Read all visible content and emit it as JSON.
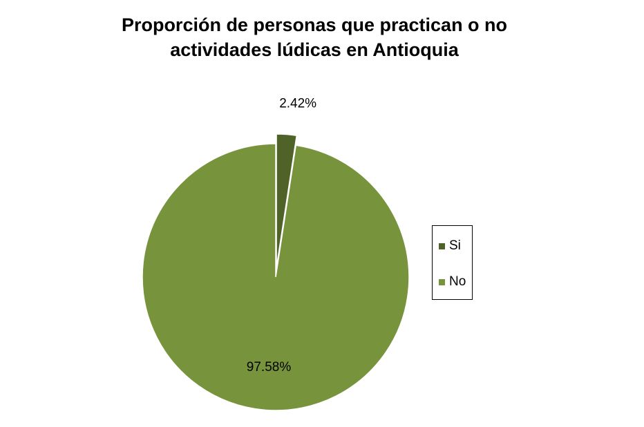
{
  "chart_data": {
    "type": "pie",
    "title_lines": [
      "Proporción de personas que practican o no",
      "actividades lúdicas en Antioquia"
    ],
    "slices": [
      {
        "label": "Si",
        "value": 2.42,
        "display": "2.42%",
        "color": "#4f6228"
      },
      {
        "label": "No",
        "value": 97.58,
        "display": "97.58%",
        "color": "#77933c"
      }
    ],
    "legend": {
      "position": "right",
      "entries": [
        "Si",
        "No"
      ]
    },
    "start_angle_deg": 0,
    "exploded_slice": "Si"
  }
}
